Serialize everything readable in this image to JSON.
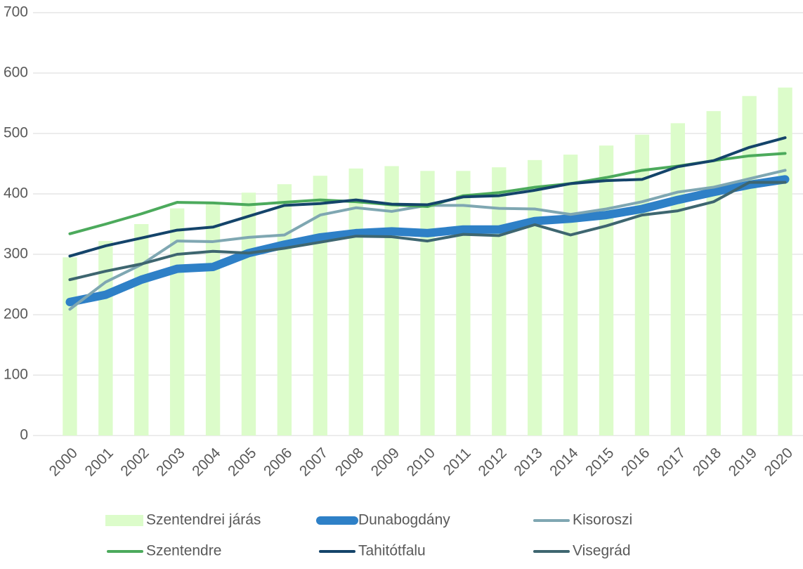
{
  "chart_data": {
    "type": "combo",
    "categories": [
      "2000",
      "2001",
      "2002",
      "2003",
      "2004",
      "2005",
      "2006",
      "2007",
      "2008",
      "2009",
      "2010",
      "2011",
      "2012",
      "2013",
      "2014",
      "2015",
      "2016",
      "2017",
      "2018",
      "2019",
      "2020"
    ],
    "ylim": [
      0,
      700
    ],
    "yticks": [
      0,
      100,
      200,
      300,
      400,
      500,
      600,
      700
    ],
    "grid": true,
    "legend": "bottom",
    "series": [
      {
        "name": "Szentendrei járás",
        "type": "bar",
        "color": "#dcfcca",
        "values": [
          295,
          322,
          350,
          376,
          385,
          402,
          416,
          430,
          442,
          446,
          438,
          438,
          444,
          456,
          465,
          480,
          498,
          517,
          537,
          562,
          576
        ]
      },
      {
        "name": "Dunabogdány",
        "type": "line",
        "color": "#2e80c7",
        "width": 12,
        "values": [
          221,
          233,
          258,
          276,
          279,
          302,
          316,
          328,
          335,
          338,
          335,
          341,
          341,
          355,
          359,
          365,
          375,
          390,
          403,
          415,
          424
        ]
      },
      {
        "name": "Kisoroszi",
        "type": "line",
        "color": "#7fa7b2",
        "width": 4,
        "values": [
          209,
          254,
          283,
          322,
          321,
          328,
          332,
          365,
          377,
          371,
          381,
          381,
          376,
          375,
          366,
          375,
          387,
          403,
          411,
          425,
          439
        ]
      },
      {
        "name": "Szentendre",
        "type": "line",
        "color": "#4caa5c",
        "width": 4,
        "values": [
          334,
          350,
          367,
          386,
          385,
          382,
          386,
          390,
          387,
          382,
          379,
          397,
          402,
          411,
          417,
          427,
          439,
          446,
          455,
          463,
          467
        ]
      },
      {
        "name": "Tahitótfalu",
        "type": "line",
        "color": "#14446a",
        "width": 4,
        "values": [
          297,
          314,
          327,
          340,
          345,
          363,
          381,
          384,
          390,
          383,
          382,
          395,
          397,
          406,
          417,
          422,
          424,
          445,
          455,
          477,
          493
        ]
      },
      {
        "name": "Visegrád",
        "type": "line",
        "color": "#3e6670",
        "width": 4,
        "values": [
          258,
          272,
          284,
          300,
          305,
          302,
          310,
          320,
          330,
          329,
          322,
          333,
          331,
          349,
          332,
          347,
          365,
          372,
          387,
          419,
          419
        ]
      }
    ]
  }
}
